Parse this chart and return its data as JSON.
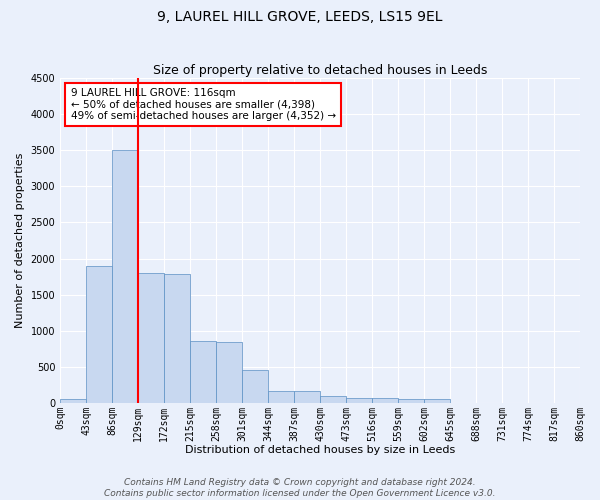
{
  "title": "9, LAUREL HILL GROVE, LEEDS, LS15 9EL",
  "subtitle": "Size of property relative to detached houses in Leeds",
  "xlabel": "Distribution of detached houses by size in Leeds",
  "ylabel": "Number of detached properties",
  "bar_values": [
    50,
    1900,
    3500,
    1800,
    1780,
    850,
    840,
    450,
    170,
    170,
    100,
    60,
    60,
    50,
    50,
    0,
    0,
    0,
    0,
    0
  ],
  "bin_labels": [
    "0sqm",
    "43sqm",
    "86sqm",
    "129sqm",
    "172sqm",
    "215sqm",
    "258sqm",
    "301sqm",
    "344sqm",
    "387sqm",
    "430sqm",
    "473sqm",
    "516sqm",
    "559sqm",
    "602sqm",
    "645sqm",
    "688sqm",
    "731sqm",
    "774sqm",
    "817sqm",
    "860sqm"
  ],
  "bar_color": "#c8d8f0",
  "bar_edge_color": "#5a8fc4",
  "vline_x_index": 2.5,
  "vline_color": "red",
  "annotation_text": "9 LAUREL HILL GROVE: 116sqm\n← 50% of detached houses are smaller (4,398)\n49% of semi-detached houses are larger (4,352) →",
  "annotation_box_color": "white",
  "annotation_box_edge_color": "red",
  "ylim": [
    0,
    4500
  ],
  "yticks": [
    0,
    500,
    1000,
    1500,
    2000,
    2500,
    3000,
    3500,
    4000,
    4500
  ],
  "footer_line1": "Contains HM Land Registry data © Crown copyright and database right 2024.",
  "footer_line2": "Contains public sector information licensed under the Open Government Licence v3.0.",
  "background_color": "#eaf0fb",
  "plot_bg_color": "#eaf0fb",
  "title_fontsize": 10,
  "subtitle_fontsize": 9,
  "axis_label_fontsize": 8,
  "tick_fontsize": 7,
  "footer_fontsize": 6.5,
  "annotation_fontsize": 7.5
}
